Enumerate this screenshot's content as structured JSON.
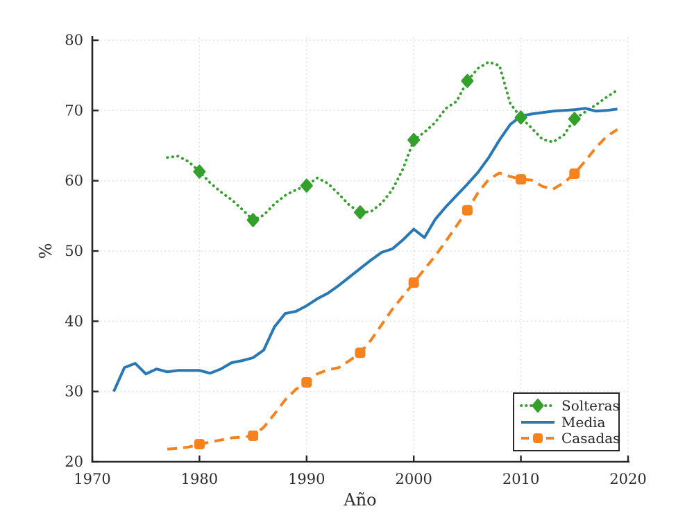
{
  "figure": {
    "background": "#ffffff",
    "axis_color": "#262626",
    "grid_color": "#d9d9d9",
    "tick_label_color": "#2e2e2e"
  },
  "chart_data": {
    "type": "line",
    "title": "",
    "xlabel": "Año",
    "ylabel": "%",
    "xlim": [
      1970,
      2020
    ],
    "ylim": [
      20,
      80
    ],
    "xticks": [
      1970,
      1980,
      1990,
      2000,
      2010,
      2020
    ],
    "yticks": [
      20,
      30,
      40,
      50,
      60,
      70,
      80
    ],
    "grid": "dotted, both axes, light gray",
    "legend_position": "lower right",
    "series": [
      {
        "name": "Solteras",
        "color": "#33a02c",
        "line_style": "dotted",
        "marker": "diamond",
        "marker_years": [
          1980,
          1985,
          1990,
          1995,
          2000,
          2005,
          2010,
          2015
        ],
        "x": [
          1977,
          1978,
          1979,
          1980,
          1981,
          1982,
          1983,
          1984,
          1985,
          1986,
          1987,
          1988,
          1989,
          1990,
          1991,
          1992,
          1993,
          1994,
          1995,
          1996,
          1997,
          1998,
          1999,
          2000,
          2001,
          2002,
          2003,
          2004,
          2005,
          2006,
          2007,
          2008,
          2009,
          2010,
          2011,
          2012,
          2013,
          2014,
          2015,
          2016,
          2017,
          2018,
          2019
        ],
        "y": [
          63.3,
          63.5,
          62.7,
          61.3,
          59.7,
          58.4,
          57.3,
          55.9,
          54.4,
          55.1,
          56.7,
          57.9,
          58.7,
          59.3,
          60.4,
          59.6,
          58.1,
          56.5,
          55.5,
          55.6,
          56.8,
          58.7,
          61.7,
          65.8,
          66.9,
          68.3,
          70.3,
          71.3,
          74.2,
          76.0,
          76.9,
          76.4,
          71.0,
          69.0,
          67.5,
          65.9,
          65.5,
          66.5,
          68.8,
          69.8,
          70.8,
          71.9,
          72.9
        ]
      },
      {
        "name": "Media",
        "color": "#2878b5",
        "line_style": "solid",
        "marker": "none",
        "marker_years": [],
        "x": [
          1972,
          1973,
          1974,
          1975,
          1976,
          1977,
          1978,
          1979,
          1980,
          1981,
          1982,
          1983,
          1984,
          1985,
          1986,
          1987,
          1988,
          1989,
          1990,
          1991,
          1992,
          1993,
          1994,
          1995,
          1996,
          1997,
          1998,
          1999,
          2000,
          2001,
          2002,
          2003,
          2004,
          2005,
          2006,
          2007,
          2008,
          2009,
          2010,
          2011,
          2012,
          2013,
          2014,
          2015,
          2016,
          2017,
          2018,
          2019
        ],
        "y": [
          30.0,
          33.4,
          34.0,
          32.5,
          33.2,
          32.8,
          33.0,
          33.0,
          33.0,
          32.6,
          33.2,
          34.1,
          34.4,
          34.8,
          35.9,
          39.2,
          41.1,
          41.4,
          42.2,
          43.2,
          44.0,
          45.1,
          46.3,
          47.5,
          48.7,
          49.8,
          50.3,
          51.6,
          53.1,
          51.9,
          54.5,
          56.3,
          57.9,
          59.5,
          61.2,
          63.3,
          65.8,
          68.0,
          69.2,
          69.5,
          69.7,
          69.9,
          70.0,
          70.1,
          70.3,
          69.9,
          70.0,
          70.2
        ]
      },
      {
        "name": "Casadas",
        "color": "#f5821f",
        "line_style": "dashed",
        "marker": "square",
        "marker_years": [
          1980,
          1985,
          1990,
          1995,
          2000,
          2005,
          2010,
          2015
        ],
        "x": [
          1977,
          1978,
          1979,
          1980,
          1981,
          1982,
          1983,
          1984,
          1985,
          1986,
          1987,
          1988,
          1989,
          1990,
          1991,
          1992,
          1993,
          1994,
          1995,
          1996,
          1997,
          1998,
          1999,
          2000,
          2001,
          2002,
          2003,
          2004,
          2005,
          2006,
          2007,
          2008,
          2009,
          2010,
          2011,
          2012,
          2013,
          2014,
          2015,
          2016,
          2017,
          2018,
          2019
        ],
        "y": [
          21.8,
          21.9,
          22.1,
          22.5,
          22.8,
          23.1,
          23.4,
          23.5,
          23.7,
          24.9,
          26.8,
          28.8,
          30.3,
          31.3,
          32.5,
          33.1,
          33.4,
          34.4,
          35.5,
          37.3,
          39.5,
          41.7,
          43.6,
          45.5,
          47.4,
          49.3,
          51.4,
          53.6,
          55.8,
          58.3,
          60.2,
          61.1,
          60.6,
          60.2,
          60.1,
          59.2,
          58.8,
          59.7,
          61.0,
          62.8,
          64.7,
          66.3,
          67.3
        ]
      }
    ]
  },
  "legend": {
    "items": [
      "Solteras",
      "Media",
      "Casadas"
    ]
  }
}
